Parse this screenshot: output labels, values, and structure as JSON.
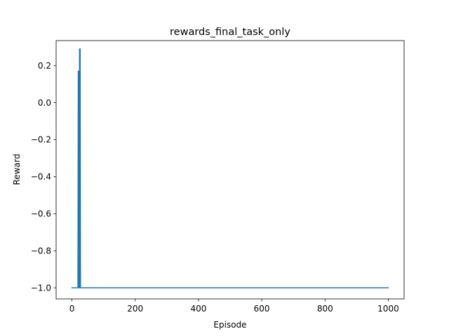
{
  "chart_data": {
    "type": "line",
    "title": "rewards_final_task_only",
    "xlabel": "Episode",
    "ylabel": "Reward",
    "xlim": [
      -50,
      1050
    ],
    "ylim": [
      -1.06,
      0.335
    ],
    "xticks": [
      0,
      200,
      400,
      600,
      800,
      1000
    ],
    "xtick_labels": [
      "0",
      "200",
      "400",
      "600",
      "800",
      "1000"
    ],
    "yticks": [
      -1.0,
      -0.8,
      -0.6,
      -0.4,
      -0.2,
      0.0,
      0.2
    ],
    "ytick_labels": [
      "−1.0",
      "−0.8",
      "−0.6",
      "−0.4",
      "−0.2",
      "0.0",
      "0.2"
    ],
    "grid": false,
    "legend": "none",
    "series": [
      {
        "color": "#1f77b4",
        "x": [
          0,
          19,
          20,
          21,
          22,
          23,
          24,
          25,
          26,
          27,
          28,
          1000
        ],
        "y": [
          -1.0,
          -1.0,
          0.17,
          -1.0,
          0.17,
          -1.0,
          0.29,
          -1.0,
          0.29,
          -1.0,
          -1.0,
          -1.0
        ]
      }
    ]
  }
}
